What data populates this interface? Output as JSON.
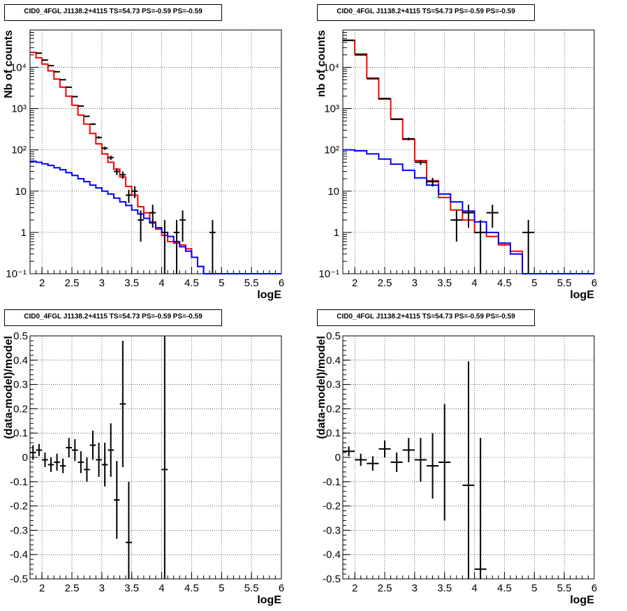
{
  "chart_data": [
    {
      "type": "histogram",
      "title": "CID0_4FGL J1138.2+4115 TS=54.73 PS=-0.59 PS=-0.59",
      "xlabel": "logE",
      "ylabel": "Nb of counts",
      "xlim": [
        1.8,
        6.0
      ],
      "ylim": [
        0.1,
        80000
      ],
      "yscale": "log",
      "grid": true,
      "xticks": [
        "2",
        "2.5",
        "3",
        "3.5",
        "4",
        "4.5",
        "5",
        "5.5",
        "6"
      ],
      "yticks": [
        "10⁻¹",
        "1",
        "10",
        "10²",
        "10³",
        "10⁴"
      ],
      "bin_edges": [
        1.8,
        1.9,
        2.0,
        2.1,
        2.2,
        2.3,
        2.4,
        2.5,
        2.6,
        2.7,
        2.8,
        2.9,
        3.0,
        3.1,
        3.2,
        3.3,
        3.4,
        3.5,
        3.6,
        3.7,
        3.8,
        3.9,
        4.0,
        4.1,
        4.2,
        4.3,
        4.4,
        4.5,
        4.6,
        4.7,
        4.8,
        4.9,
        5.0,
        5.1,
        5.2,
        5.3,
        5.4,
        5.5,
        5.6,
        5.7,
        5.8,
        5.9,
        6.0
      ],
      "series": [
        {
          "role": "total-model",
          "color": "#ff0000",
          "values": [
            23000,
            17000,
            12000,
            8200,
            5200,
            3300,
            2000,
            1200,
            700,
            420,
            250,
            140,
            80,
            50,
            34,
            22,
            13,
            8,
            4.2,
            3.0,
            1.8,
            1.2,
            0.85,
            0.6,
            0.55,
            0.5,
            0.4,
            0.25,
            0.15,
            0.1,
            0.1,
            0.1,
            0.1,
            0.1,
            0.1,
            0.1,
            0.1,
            0.1,
            0.1,
            0.1,
            0.1,
            0.1
          ]
        },
        {
          "role": "source-model",
          "color": "#0000ff",
          "values": [
            53,
            50,
            46,
            42,
            37,
            33,
            28,
            24,
            20,
            17,
            14,
            12,
            10,
            8.5,
            6.8,
            5.5,
            4.5,
            3.5,
            2.8,
            2.2,
            1.7,
            1.3,
            1.0,
            0.8,
            0.6,
            0.45,
            0.35,
            0.25,
            0.15,
            0.1,
            0.1,
            0.1,
            0.1,
            0.1,
            0.1,
            0.1,
            0.1,
            0.1,
            0.1,
            0.1,
            0.1,
            0.1
          ]
        },
        {
          "role": "data",
          "color": "#000000",
          "points": [
            {
              "x": 1.95,
              "y": 22000,
              "elo": 150,
              "ehi": 150
            },
            {
              "x": 2.05,
              "y": 15000,
              "elo": 120,
              "ehi": 120
            },
            {
              "x": 2.15,
              "y": 11000,
              "elo": 100,
              "ehi": 100
            },
            {
              "x": 2.25,
              "y": 7800,
              "elo": 90,
              "ehi": 90
            },
            {
              "x": 2.35,
              "y": 5000,
              "elo": 70,
              "ehi": 70
            },
            {
              "x": 2.45,
              "y": 3300,
              "elo": 57,
              "ehi": 57
            },
            {
              "x": 2.55,
              "y": 1950,
              "elo": 44,
              "ehi": 44
            },
            {
              "x": 2.65,
              "y": 1150,
              "elo": 34,
              "ehi": 34
            },
            {
              "x": 2.75,
              "y": 650,
              "elo": 25,
              "ehi": 25
            },
            {
              "x": 2.85,
              "y": 420,
              "elo": 20,
              "ehi": 20
            },
            {
              "x": 2.95,
              "y": 200,
              "elo": 14,
              "ehi": 14
            },
            {
              "x": 3.05,
              "y": 110,
              "elo": 10,
              "ehi": 10
            },
            {
              "x": 3.15,
              "y": 65,
              "elo": 8,
              "ehi": 8
            },
            {
              "x": 3.25,
              "y": 30,
              "elo": 5.5,
              "ehi": 5.5
            },
            {
              "x": 3.35,
              "y": 25,
              "elo": 5,
              "ehi": 5
            },
            {
              "x": 3.45,
              "y": 8,
              "elo": 2.8,
              "ehi": 2.8
            },
            {
              "x": 3.55,
              "y": 10,
              "elo": 3.2,
              "ehi": 3.2
            },
            {
              "x": 3.65,
              "y": 2,
              "elo": 1.4,
              "ehi": 1.4
            },
            {
              "x": 3.85,
              "y": 3,
              "elo": 1.7,
              "ehi": 1.7
            },
            {
              "x": 4.05,
              "y": 1,
              "elo": 0.999,
              "ehi": 1
            },
            {
              "x": 4.25,
              "y": 1,
              "elo": 0.999,
              "ehi": 1
            },
            {
              "x": 4.35,
              "y": 2,
              "elo": 1.4,
              "ehi": 1.4
            },
            {
              "x": 4.85,
              "y": 1,
              "elo": 0.999,
              "ehi": 1
            }
          ]
        }
      ]
    },
    {
      "type": "histogram",
      "title": "CID0_4FGL J1138.2+4115 TS=54.73 PS=-0.59 PS=-0.59",
      "xlabel": "logE",
      "ylabel": "nb of counts",
      "xlim": [
        1.8,
        6.0
      ],
      "ylim": [
        0.1,
        80000
      ],
      "yscale": "log",
      "grid": true,
      "xticks": [
        "2",
        "2.5",
        "3",
        "3.5",
        "4",
        "4.5",
        "5",
        "5.5",
        "6"
      ],
      "yticks": [
        "10⁻¹",
        "1",
        "10",
        "10²",
        "10³",
        "10⁴"
      ],
      "bin_edges": [
        1.8,
        2.0,
        2.2,
        2.4,
        2.6,
        2.8,
        3.0,
        3.2,
        3.4,
        3.6,
        3.8,
        4.0,
        4.2,
        4.4,
        4.6,
        4.8,
        5.0,
        5.2,
        5.4,
        5.6,
        5.8,
        6.0
      ],
      "series": [
        {
          "role": "total-model",
          "color": "#ff0000",
          "values": [
            45000,
            21000,
            5500,
            1700,
            560,
            180,
            55,
            18,
            7,
            3.5,
            2.0,
            1.0,
            0.8,
            0.5,
            0.35,
            0.1,
            0.1,
            0.1,
            0.1,
            0.1,
            0.1
          ]
        },
        {
          "role": "source-model",
          "color": "#0000ff",
          "values": [
            100,
            95,
            80,
            60,
            45,
            32,
            21,
            14,
            8.5,
            5.5,
            3.3,
            1.8,
            1.0,
            0.55,
            0.3,
            0.1,
            0.1,
            0.1,
            0.1,
            0.1,
            0.1
          ]
        },
        {
          "role": "data",
          "color": "#000000",
          "points": [
            {
              "x": 1.9,
              "y": 45000,
              "elo": 210,
              "ehi": 210
            },
            {
              "x": 2.1,
              "y": 20000,
              "elo": 140,
              "ehi": 140
            },
            {
              "x": 2.3,
              "y": 5300,
              "elo": 73,
              "ehi": 73
            },
            {
              "x": 2.5,
              "y": 1750,
              "elo": 42,
              "ehi": 42
            },
            {
              "x": 2.7,
              "y": 550,
              "elo": 23,
              "ehi": 23
            },
            {
              "x": 2.9,
              "y": 185,
              "elo": 14,
              "ehi": 14
            },
            {
              "x": 3.1,
              "y": 50,
              "elo": 7,
              "ehi": 7
            },
            {
              "x": 3.3,
              "y": 17,
              "elo": 4,
              "ehi": 4
            },
            {
              "x": 3.7,
              "y": 2,
              "elo": 1.4,
              "ehi": 1.4
            },
            {
              "x": 3.9,
              "y": 3,
              "elo": 1.7,
              "ehi": 1.7
            },
            {
              "x": 4.1,
              "y": 1,
              "elo": 0.999,
              "ehi": 1
            },
            {
              "x": 4.3,
              "y": 3,
              "elo": 1.7,
              "ehi": 1.7
            },
            {
              "x": 4.9,
              "y": 1,
              "elo": 0.999,
              "ehi": 1
            }
          ]
        }
      ]
    },
    {
      "type": "scatter",
      "title": "CID0_4FGL J1138.2+4115 TS=54.73 PS=-0.59 PS=-0.59",
      "xlabel": "logE",
      "ylabel": "(data-model)/model",
      "xlim": [
        1.8,
        6.0
      ],
      "ylim": [
        -0.5,
        0.5
      ],
      "grid": true,
      "xticks": [
        "2",
        "2.5",
        "3",
        "3.5",
        "4",
        "4.5",
        "5",
        "5.5",
        "6"
      ],
      "yticks": [
        "-0.5",
        "-0.4",
        "-0.3",
        "-0.2",
        "-0.1",
        "0",
        "0.1",
        "0.2",
        "0.3",
        "0.4",
        "0.5"
      ],
      "series": [
        {
          "role": "residuals",
          "color": "#000000",
          "points": [
            {
              "x": 1.85,
              "y": 0.02,
              "err": 0.03
            },
            {
              "x": 1.95,
              "y": 0.03,
              "err": 0.025
            },
            {
              "x": 2.05,
              "y": -0.01,
              "err": 0.03
            },
            {
              "x": 2.15,
              "y": -0.03,
              "err": 0.03
            },
            {
              "x": 2.25,
              "y": -0.02,
              "err": 0.035
            },
            {
              "x": 2.35,
              "y": -0.035,
              "err": 0.03
            },
            {
              "x": 2.45,
              "y": 0.04,
              "err": 0.04
            },
            {
              "x": 2.55,
              "y": 0.03,
              "err": 0.045
            },
            {
              "x": 2.65,
              "y": -0.02,
              "err": 0.045
            },
            {
              "x": 2.75,
              "y": -0.05,
              "err": 0.05
            },
            {
              "x": 2.85,
              "y": 0.05,
              "err": 0.06
            },
            {
              "x": 2.95,
              "y": -0.01,
              "err": 0.07
            },
            {
              "x": 3.05,
              "y": -0.03,
              "err": 0.09
            },
            {
              "x": 3.15,
              "y": 0.03,
              "err": 0.11
            },
            {
              "x": 3.25,
              "y": -0.175,
              "err": 0.16
            },
            {
              "x": 3.35,
              "y": 0.22,
              "err": 0.26
            },
            {
              "x": 3.45,
              "y": -0.35,
              "err": 0.25
            },
            {
              "x": 4.05,
              "y": -0.05,
              "err": 0.9
            }
          ]
        }
      ]
    },
    {
      "type": "scatter",
      "title": "CID0_4FGL J1138.2+4115 TS=54.73 PS=-0.59 PS=-0.59",
      "xlabel": "logE",
      "ylabel": "(data-model)/model",
      "xlim": [
        1.8,
        6.0
      ],
      "ylim": [
        -0.5,
        0.5
      ],
      "grid": true,
      "xticks": [
        "2",
        "2.5",
        "3",
        "3.5",
        "4",
        "4.5",
        "5",
        "5.5",
        "6"
      ],
      "yticks": [
        "-0.5",
        "-0.4",
        "-0.3",
        "-0.2",
        "-0.1",
        "0",
        "0.1",
        "0.2",
        "0.3",
        "0.4",
        "0.5"
      ],
      "series": [
        {
          "role": "residuals",
          "color": "#000000",
          "points": [
            {
              "x": 1.9,
              "y": 0.025,
              "err": 0.02
            },
            {
              "x": 2.1,
              "y": -0.01,
              "err": 0.025
            },
            {
              "x": 2.3,
              "y": -0.025,
              "err": 0.03
            },
            {
              "x": 2.5,
              "y": 0.035,
              "err": 0.035
            },
            {
              "x": 2.7,
              "y": -0.02,
              "err": 0.04
            },
            {
              "x": 2.9,
              "y": 0.03,
              "err": 0.05
            },
            {
              "x": 3.1,
              "y": -0.01,
              "err": 0.09
            },
            {
              "x": 3.3,
              "y": -0.035,
              "err": 0.135
            },
            {
              "x": 3.5,
              "y": -0.02,
              "err": 0.24
            },
            {
              "x": 3.9,
              "y": -0.115,
              "err": 0.51
            },
            {
              "x": 4.1,
              "y": -0.46,
              "err": 0.54
            }
          ]
        }
      ]
    }
  ]
}
